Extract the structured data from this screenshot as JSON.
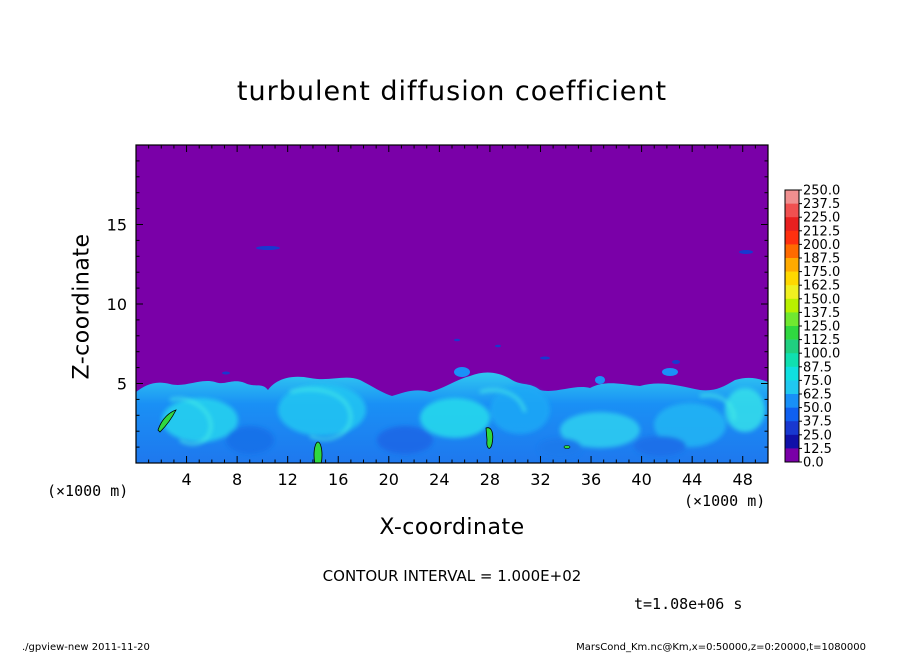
{
  "figure": {
    "contour_interval": "CONTOUR INTERVAL = 1.000E+02",
    "time_label": "t=1.08e+06 s",
    "footer_left": "./gpview-new  2011-11-20",
    "footer_right": "MarsCond_Km.nc@Km,x=0:50000,z=0:20000,t=1080000"
  },
  "chart_data": {
    "type": "heatmap",
    "title": "turbulent diffusion coefficient",
    "xlabel": "X-coordinate",
    "ylabel": "Z-coordinate",
    "x_unit": "(×1000 m)",
    "z_unit": "(×1000 m)",
    "xlim": [
      0,
      50
    ],
    "ylim": [
      0,
      20
    ],
    "x_ticks": [
      4,
      8,
      12,
      16,
      20,
      24,
      28,
      32,
      36,
      40,
      44,
      48
    ],
    "y_ticks": [
      5,
      10,
      15
    ],
    "background_value": 0,
    "background_color": "#7a00a8",
    "boundary_layer_top_approx": 5.2,
    "contour_levels": [
      100
    ],
    "colorbar": {
      "levels": [
        "250.0",
        "237.5",
        "225.0",
        "212.5",
        "200.0",
        "187.5",
        "175.0",
        "162.5",
        "150.0",
        "137.5",
        "125.0",
        "112.5",
        "100.0",
        "87.5",
        "75.0",
        "62.5",
        "50.0",
        "37.5",
        "25.0",
        "12.5",
        "0.0"
      ],
      "colors": [
        "#f08f8f",
        "#f05050",
        "#e82020",
        "#ff3010",
        "#ff6a00",
        "#ffaa00",
        "#ffd800",
        "#f0f020",
        "#b8f000",
        "#70e830",
        "#30d840",
        "#20d080",
        "#10e0b0",
        "#10e0e0",
        "#20c8f0",
        "#1890f8",
        "#1060f0",
        "#1838d0",
        "#1010a8",
        "#7a00a8"
      ]
    }
  }
}
